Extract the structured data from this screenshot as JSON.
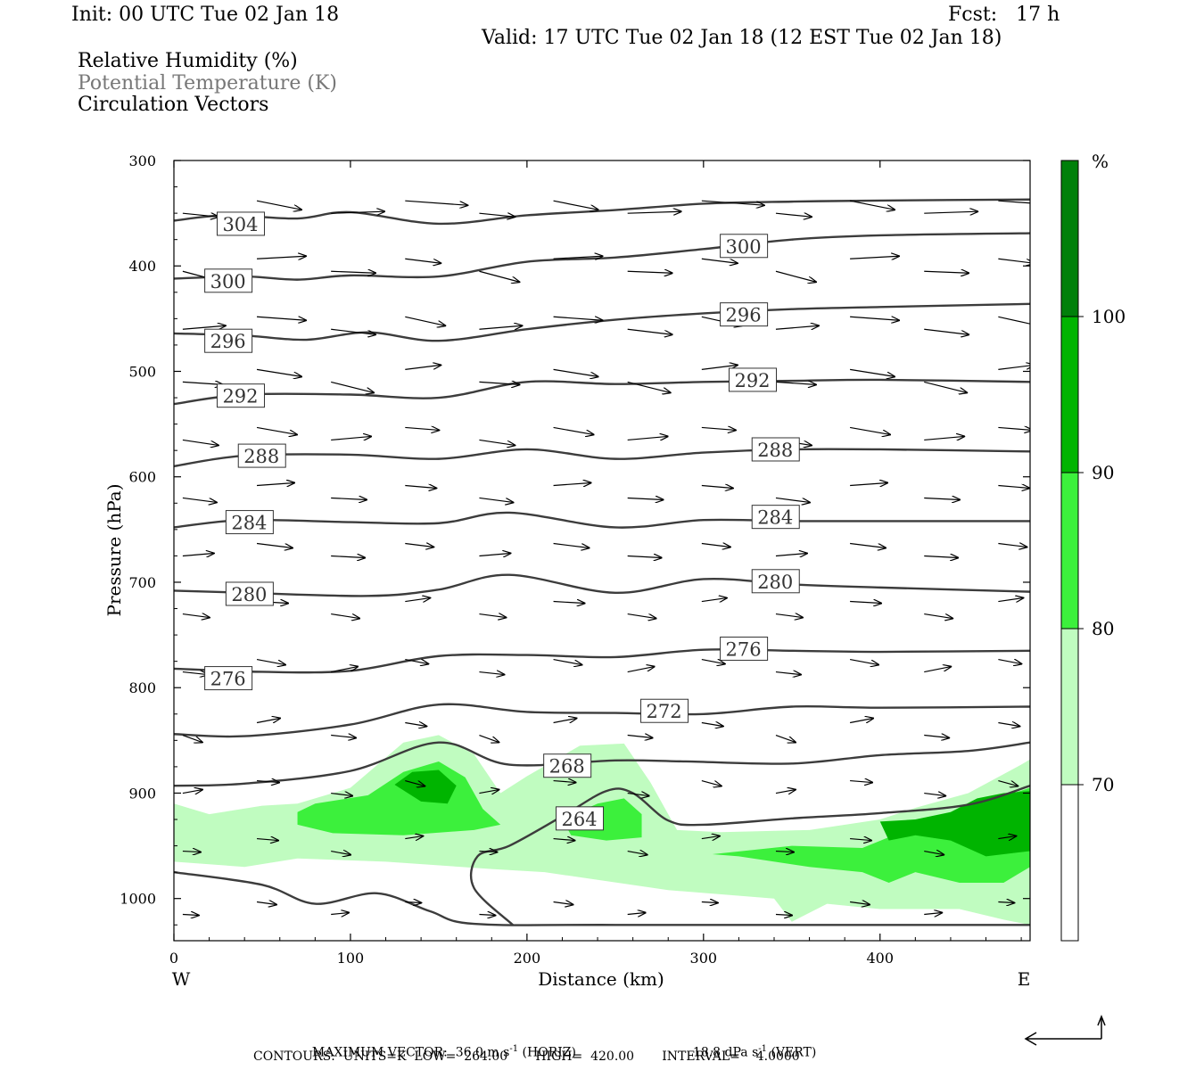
{
  "header": {
    "init": "Init: 00 UTC Tue 02 Jan 18",
    "fcst": "Fcst:   17 h",
    "valid": "Valid: 17 UTC Tue 02 Jan 18 (12 EST Tue 02 Jan 18)"
  },
  "legend": {
    "rh": "Relative Humidity (%)",
    "theta": "Potential Temperature (K)",
    "vectors": "Circulation Vectors"
  },
  "colors": {
    "rh_70_80": "#c0fcc0",
    "rh_80_90": "#3cf03c",
    "rh_90_100": "#00b400",
    "rh_100": "#00800a",
    "contour": "#3c3c3c"
  },
  "chart_data": {
    "type": "cross-section",
    "xlabel": "Distance (km)",
    "ylabel": "Pressure (hPa)",
    "x_end_labels": [
      "W",
      "E"
    ],
    "xlim": [
      0,
      485
    ],
    "ylim": [
      1040,
      300
    ],
    "xticks": [
      0,
      100,
      200,
      300,
      400
    ],
    "yticks": [
      300,
      400,
      500,
      600,
      700,
      800,
      900,
      1000
    ],
    "colorbar": {
      "unit": "%",
      "levels": [
        70,
        80,
        90,
        100
      ],
      "colors": [
        "#c0fcc0",
        "#3cf03c",
        "#00b400",
        "#00800a"
      ]
    },
    "theta_contours": [
      {
        "label": "304",
        "label_x": 25,
        "label_p": 360,
        "points": [
          [
            0,
            357
          ],
          [
            30,
            352
          ],
          [
            70,
            355
          ],
          [
            100,
            349
          ],
          [
            150,
            360
          ],
          [
            200,
            352
          ],
          [
            250,
            347
          ],
          [
            300,
            341
          ],
          [
            350,
            339
          ],
          [
            400,
            338
          ],
          [
            485,
            337
          ]
        ]
      },
      {
        "label": "300",
        "label_x": 18,
        "label_p": 414,
        "points": [
          [
            0,
            412
          ],
          [
            40,
            410
          ],
          [
            70,
            413
          ],
          [
            100,
            409
          ],
          [
            150,
            410
          ],
          [
            200,
            396
          ],
          [
            250,
            392
          ],
          [
            300,
            384
          ],
          [
            350,
            375
          ],
          [
            400,
            371
          ],
          [
            485,
            369
          ]
        ]
      },
      {
        "label": "300",
        "label_x": 310,
        "label_p": 381
      },
      {
        "label": "296",
        "label_x": 18,
        "label_p": 471,
        "points": [
          [
            0,
            464
          ],
          [
            40,
            466
          ],
          [
            75,
            470
          ],
          [
            110,
            463
          ],
          [
            150,
            471
          ],
          [
            200,
            460
          ],
          [
            250,
            451
          ],
          [
            300,
            445
          ],
          [
            350,
            441
          ],
          [
            400,
            439
          ],
          [
            485,
            436
          ]
        ]
      },
      {
        "label": "296",
        "label_x": 310,
        "label_p": 446
      },
      {
        "label": "292",
        "label_x": 25,
        "label_p": 523,
        "points": [
          [
            0,
            531
          ],
          [
            40,
            522
          ],
          [
            100,
            522
          ],
          [
            150,
            525
          ],
          [
            200,
            510
          ],
          [
            250,
            512
          ],
          [
            300,
            510
          ],
          [
            350,
            509
          ],
          [
            400,
            508
          ],
          [
            485,
            510
          ]
        ]
      },
      {
        "label": "292",
        "label_x": 315,
        "label_p": 508
      },
      {
        "label": "288",
        "label_x": 37,
        "label_p": 580,
        "points": [
          [
            0,
            590
          ],
          [
            40,
            580
          ],
          [
            100,
            579
          ],
          [
            150,
            583
          ],
          [
            200,
            574
          ],
          [
            250,
            583
          ],
          [
            300,
            577
          ],
          [
            350,
            574
          ],
          [
            400,
            574
          ],
          [
            485,
            576
          ]
        ]
      },
      {
        "label": "288",
        "label_x": 328,
        "label_p": 574
      },
      {
        "label": "284",
        "label_x": 30,
        "label_p": 643,
        "points": [
          [
            0,
            648
          ],
          [
            40,
            641
          ],
          [
            100,
            643
          ],
          [
            150,
            644
          ],
          [
            190,
            634
          ],
          [
            250,
            648
          ],
          [
            300,
            641
          ],
          [
            350,
            642
          ],
          [
            400,
            642
          ],
          [
            485,
            642
          ]
        ]
      },
      {
        "label": "284",
        "label_x": 328,
        "label_p": 638
      },
      {
        "label": "280",
        "label_x": 30,
        "label_p": 711,
        "points": [
          [
            0,
            708
          ],
          [
            40,
            710
          ],
          [
            110,
            713
          ],
          [
            150,
            707
          ],
          [
            190,
            693
          ],
          [
            250,
            710
          ],
          [
            300,
            697
          ],
          [
            350,
            702
          ],
          [
            400,
            705
          ],
          [
            485,
            709
          ]
        ]
      },
      {
        "label": "280",
        "label_x": 328,
        "label_p": 699
      },
      {
        "label": "276",
        "label_x": 18,
        "label_p": 791,
        "points": [
          [
            0,
            782
          ],
          [
            50,
            785
          ],
          [
            100,
            784
          ],
          [
            150,
            770
          ],
          [
            200,
            769
          ],
          [
            250,
            771
          ],
          [
            300,
            764
          ],
          [
            350,
            765
          ],
          [
            400,
            766
          ],
          [
            485,
            765
          ]
        ]
      },
      {
        "label": "276",
        "label_x": 310,
        "label_p": 763
      },
      {
        "label": "272",
        "label_x": 265,
        "label_p": 822,
        "points": [
          [
            0,
            844
          ],
          [
            40,
            846
          ],
          [
            100,
            835
          ],
          [
            150,
            816
          ],
          [
            200,
            823
          ],
          [
            250,
            824
          ],
          [
            300,
            825
          ],
          [
            350,
            818
          ],
          [
            400,
            819
          ],
          [
            485,
            818
          ]
        ]
      },
      {
        "label": "268",
        "label_x": 210,
        "label_p": 874,
        "points": [
          [
            0,
            893
          ],
          [
            40,
            891
          ],
          [
            100,
            879
          ],
          [
            150,
            852
          ],
          [
            190,
            873
          ],
          [
            250,
            869
          ],
          [
            290,
            870
          ],
          [
            350,
            872
          ],
          [
            400,
            864
          ],
          [
            450,
            860
          ],
          [
            485,
            852
          ]
        ]
      },
      {
        "label": "264",
        "label_x": 217,
        "label_p": 924,
        "points": [
          [
            192,
            1025
          ],
          [
            170,
            990
          ],
          [
            172,
            960
          ],
          [
            190,
            950
          ],
          [
            220,
            922
          ],
          [
            245,
            898
          ],
          [
            260,
            900
          ],
          [
            280,
            926
          ],
          [
            300,
            930
          ],
          [
            350,
            924
          ],
          [
            400,
            919
          ],
          [
            450,
            911
          ],
          [
            485,
            893
          ]
        ]
      },
      {
        "label": "",
        "points": [
          [
            0,
            975
          ],
          [
            50,
            987
          ],
          [
            80,
            1005
          ],
          [
            115,
            995
          ],
          [
            145,
            1012
          ],
          [
            170,
            1024
          ],
          [
            250,
            1025
          ],
          [
            485,
            1025
          ]
        ]
      }
    ],
    "rh_regions": [
      {
        "level": 70,
        "points": [
          [
            0,
            910
          ],
          [
            20,
            920
          ],
          [
            50,
            912
          ],
          [
            70,
            910
          ],
          [
            100,
            895
          ],
          [
            130,
            852
          ],
          [
            150,
            845
          ],
          [
            170,
            863
          ],
          [
            185,
            900
          ],
          [
            200,
            884
          ],
          [
            230,
            855
          ],
          [
            255,
            853
          ],
          [
            270,
            890
          ],
          [
            285,
            935
          ],
          [
            310,
            937
          ],
          [
            360,
            935
          ],
          [
            400,
            925
          ],
          [
            420,
            914
          ],
          [
            450,
            900
          ],
          [
            480,
            873
          ],
          [
            485,
            868
          ],
          [
            485,
            1025
          ],
          [
            470,
            1020
          ],
          [
            445,
            1010
          ],
          [
            400,
            1010
          ],
          [
            370,
            1005
          ],
          [
            350,
            1022
          ],
          [
            340,
            1000
          ],
          [
            280,
            992
          ],
          [
            210,
            975
          ],
          [
            180,
            972
          ],
          [
            120,
            965
          ],
          [
            70,
            962
          ],
          [
            40,
            970
          ],
          [
            0,
            965
          ]
        ]
      },
      {
        "level": 80,
        "points": [
          [
            70,
            918
          ],
          [
            80,
            910
          ],
          [
            110,
            902
          ],
          [
            130,
            880
          ],
          [
            150,
            870
          ],
          [
            165,
            885
          ],
          [
            175,
            915
          ],
          [
            185,
            930
          ],
          [
            170,
            935
          ],
          [
            130,
            940
          ],
          [
            90,
            938
          ],
          [
            70,
            930
          ]
        ]
      },
      {
        "level": 80,
        "points": [
          [
            220,
            925
          ],
          [
            240,
            910
          ],
          [
            255,
            905
          ],
          [
            265,
            920
          ],
          [
            265,
            942
          ],
          [
            245,
            945
          ],
          [
            225,
            940
          ]
        ]
      },
      {
        "level": 80,
        "points": [
          [
            305,
            958
          ],
          [
            350,
            950
          ],
          [
            390,
            952
          ],
          [
            415,
            935
          ],
          [
            440,
            918
          ],
          [
            470,
            903
          ],
          [
            485,
            895
          ],
          [
            485,
            970
          ],
          [
            470,
            985
          ],
          [
            445,
            985
          ],
          [
            420,
            975
          ],
          [
            405,
            985
          ],
          [
            390,
            975
          ],
          [
            360,
            970
          ],
          [
            320,
            960
          ]
        ]
      },
      {
        "level": 90,
        "points": [
          [
            125,
            892
          ],
          [
            135,
            880
          ],
          [
            150,
            878
          ],
          [
            160,
            893
          ],
          [
            155,
            910
          ],
          [
            140,
            908
          ]
        ]
      },
      {
        "level": 90,
        "points": [
          [
            400,
            927
          ],
          [
            420,
            925
          ],
          [
            440,
            918
          ],
          [
            455,
            905
          ],
          [
            470,
            900
          ],
          [
            485,
            898
          ],
          [
            485,
            955
          ],
          [
            460,
            960
          ],
          [
            440,
            945
          ],
          [
            420,
            940
          ],
          [
            405,
            945
          ]
        ]
      }
    ],
    "footer": {
      "max_vector_label": "MAXIMUM VECTOR:",
      "horiz": "36.0 m s",
      "horiz_tag": "(HORIZ)",
      "vert": "18.8 dPa s",
      "vert_tag": "(VERT)",
      "exponent": "-1",
      "contours": "CONTOURS:  UNITS=K  LOW=  264.00       HIGH=  420.00       INTERVAL=    4.0000"
    }
  }
}
